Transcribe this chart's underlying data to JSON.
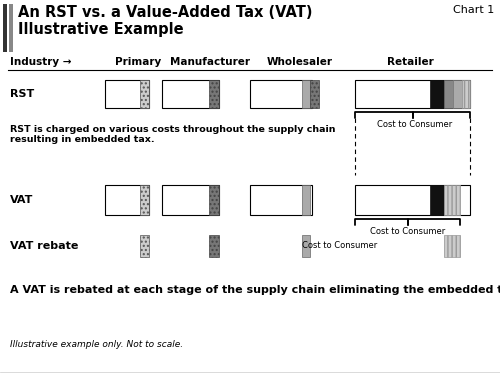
{
  "title_line1": "An RST vs. a Value-Added Tax (VAT)",
  "title_line2": "Illustrative Example",
  "chart_label": "Chart 1",
  "bg_color": "#ffffff",
  "industry_label": "Industry →",
  "columns": [
    "Primary",
    "Manufacturer",
    "Wholesaler",
    "Retailer"
  ],
  "footnote1": "RST is charged on various costs throughout the supply chain\nresulting in embedded tax.",
  "footnote2": "A VAT is rebated at each stage of the supply chain eliminating the embedded tax.",
  "footnote3": "Illustrative example only. Not to scale.",
  "bar_left_stripe1": "#444444",
  "bar_left_stripe2": "#888888"
}
